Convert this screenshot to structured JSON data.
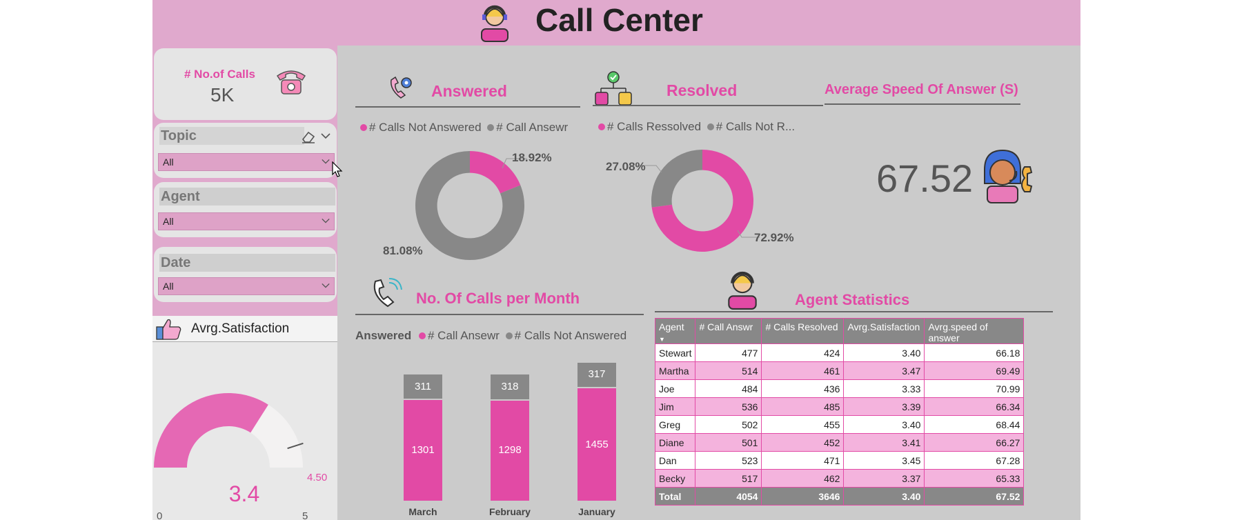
{
  "header": {
    "title": "Call Center"
  },
  "kpi": {
    "label": "# No.of Calls",
    "value": "5K"
  },
  "slicers": [
    {
      "title": "Topic",
      "value": "All"
    },
    {
      "title": "Agent",
      "value": "All"
    },
    {
      "title": "Date",
      "value": "All"
    }
  ],
  "satisfaction": {
    "title": "Avrg.Satisfaction",
    "value": "3.4",
    "min": "0",
    "max": "5",
    "target": "4.50",
    "value_num": 3.4,
    "max_num": 5,
    "target_num": 4.5
  },
  "answered": {
    "title": "Answered",
    "legend": [
      "# Calls Not Answered",
      "# Call Ansewr"
    ],
    "pct_small": "18.92%",
    "pct_large": "81.08%",
    "share_small": 18.92
  },
  "resolved": {
    "title": "Resolved",
    "legend": [
      "# Calls Ressolved",
      "# Calls Not R..."
    ],
    "pct_small": "27.08%",
    "pct_large": "72.92%",
    "share_large": 72.92
  },
  "speed": {
    "title": "Average Speed Of Answer (S)",
    "value": "67.52"
  },
  "calls_month": {
    "title": "No. Of Calls per Month",
    "legend_title": "Answered",
    "legend": [
      "# Call Ansewr",
      "# Calls Not Answered"
    ]
  },
  "chart_data": {
    "type": "bar",
    "categories": [
      "March",
      "February",
      "January"
    ],
    "series": [
      {
        "name": "# Call Ansewr",
        "values": [
          1301,
          1298,
          1455
        ]
      },
      {
        "name": "# Calls Not Answered",
        "values": [
          311,
          318,
          317
        ]
      }
    ],
    "stacked": true
  },
  "agent_stats": {
    "title": "Agent Statistics",
    "columns": [
      "Agent",
      "# Call Answr",
      "# Calls Resolved",
      "Avrg.Satisfaction",
      "Avrg.speed of answer"
    ],
    "rows": [
      [
        "Stewart",
        "477",
        "424",
        "3.40",
        "66.18"
      ],
      [
        "Martha",
        "514",
        "461",
        "3.47",
        "69.49"
      ],
      [
        "Joe",
        "484",
        "436",
        "3.33",
        "70.99"
      ],
      [
        "Jim",
        "536",
        "485",
        "3.39",
        "66.34"
      ],
      [
        "Greg",
        "502",
        "455",
        "3.40",
        "68.44"
      ],
      [
        "Diane",
        "501",
        "452",
        "3.41",
        "66.27"
      ],
      [
        "Dan",
        "523",
        "471",
        "3.45",
        "67.28"
      ],
      [
        "Becky",
        "517",
        "462",
        "3.37",
        "65.33"
      ]
    ],
    "total": [
      "Total",
      "4054",
      "3646",
      "3.40",
      "67.52"
    ]
  },
  "colors": {
    "pink": "#e24aa5",
    "grey": "#888888",
    "header": "#e0a9cd",
    "panel": "#cbcbcb"
  },
  "icons": [
    "agent-avatar-icon",
    "telephone-icon",
    "eraser-icon",
    "chevron-down-icon",
    "thumbs-up-icon",
    "phone-gear-icon",
    "network-people-icon",
    "headset-agent-icon",
    "phone-ring-icon",
    "mouse-cursor-icon"
  ]
}
